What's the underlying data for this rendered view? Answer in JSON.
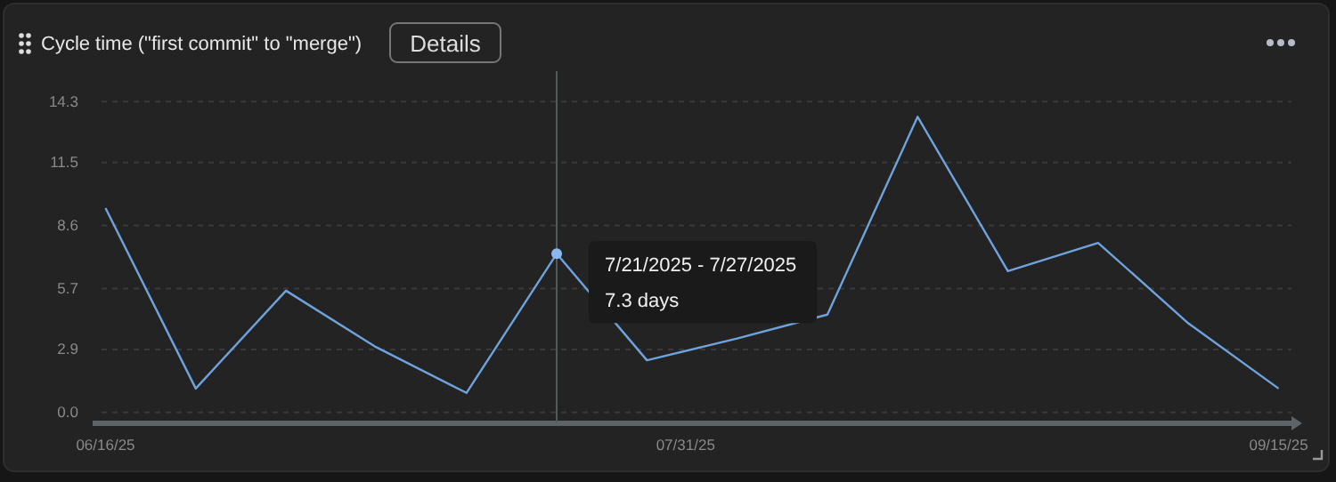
{
  "chart_data": {
    "type": "line",
    "title": "Cycle time (\"first commit\" to \"merge\")",
    "x": [
      "2025-06-16",
      "2025-06-23",
      "2025-06-30",
      "2025-07-07",
      "2025-07-14",
      "2025-07-21",
      "2025-07-28",
      "2025-08-04",
      "2025-08-11",
      "2025-08-18",
      "2025-08-25",
      "2025-09-01",
      "2025-09-08",
      "2025-09-15"
    ],
    "series": [
      {
        "color": "#6fa3dd",
        "values": [
          9.4,
          1.1,
          5.6,
          3.0,
          0.9,
          7.3,
          2.4,
          3.4,
          4.5,
          13.6,
          6.5,
          7.8,
          4.1,
          1.1
        ]
      }
    ],
    "ylim": [
      -0.5,
      15.7
    ],
    "yticks": [
      {
        "value": 0,
        "label": "0.0"
      },
      2.9,
      5.7,
      8.6,
      11.5,
      14.3
    ],
    "xlim": [
      "2025-06-15",
      "2025-09-16"
    ],
    "xticks": [
      {
        "value": "2025-06-16",
        "label": "06/16/25"
      },
      {
        "value": "2025-07-31",
        "label": "07/31/25"
      },
      {
        "value": "2025-09-15",
        "label": "09/15/25"
      }
    ],
    "grid": "y",
    "marker": "none",
    "line_style": "solid",
    "ref_lines": [
      {
        "axis": "x",
        "value": "2025-07-21",
        "color": "#555a5e"
      }
    ],
    "annotations": [
      "Details",
      {
        "text": "7/21/2025 - 7/27/2025",
        "x": "2025-07-21",
        "y": 7.3
      },
      "7.3 days"
    ]
  }
}
